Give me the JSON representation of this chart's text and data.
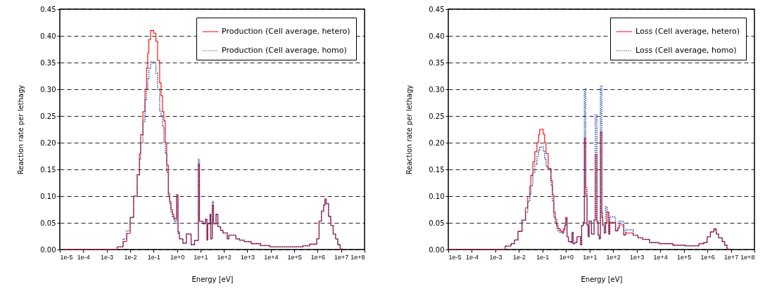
{
  "chart_data": [
    {
      "type": "step",
      "xlabel": "Energy [eV]",
      "ylabel": "Reaction rate per lethagy",
      "log": "x",
      "grid": "y",
      "legend": "top right",
      "xlim": [
        1e-05,
        100000000.0
      ],
      "ylim": [
        0,
        0.45
      ],
      "xticks": [
        {
          "value": 1e-05,
          "label": "1e-5"
        },
        {
          "value": 0.0001,
          "label": "1e-4"
        },
        {
          "value": 0.001,
          "label": "1e-3"
        },
        {
          "value": 0.01,
          "label": "1e-2"
        },
        {
          "value": 0.1,
          "label": "1e-1"
        },
        {
          "value": 1,
          "label": "1e+0"
        },
        {
          "value": 10,
          "label": "1e+1"
        },
        {
          "value": 100,
          "label": "1e+2"
        },
        {
          "value": 1000,
          "label": "1e+3"
        },
        {
          "value": 10000,
          "label": "1e+4"
        },
        {
          "value": 100000,
          "label": "1e+5"
        },
        {
          "value": 1000000,
          "label": "1e+6"
        },
        {
          "value": 10000000,
          "label": "1e+7"
        },
        {
          "value": 100000000,
          "label": "1e+8"
        }
      ],
      "yticks": [
        {
          "value": 0,
          "label": "0.00"
        },
        {
          "value": 0.05,
          "label": "0.05"
        },
        {
          "value": 0.1,
          "label": "0.10"
        },
        {
          "value": 0.15,
          "label": "0.15"
        },
        {
          "value": 0.2,
          "label": "0.20"
        },
        {
          "value": 0.25,
          "label": "0.25"
        },
        {
          "value": 0.3,
          "label": "0.30"
        },
        {
          "value": 0.35,
          "label": "0.35"
        },
        {
          "value": 0.4,
          "label": "0.40"
        },
        {
          "value": 0.45,
          "label": "0.45"
        }
      ],
      "x": [
        1e-05,
        0.0028,
        0.005,
        0.0071,
        0.01,
        0.014,
        0.02,
        0.025,
        0.028,
        0.035,
        0.043,
        0.05,
        0.056,
        0.063,
        0.074,
        0.1,
        0.126,
        0.148,
        0.182,
        0.209,
        0.24,
        0.275,
        0.316,
        0.363,
        0.427,
        0.479,
        0.55,
        0.631,
        0.724,
        0.832,
        0.955,
        1.1,
        1.26,
        1.78,
        2.5,
        4.0,
        5.6,
        8.1,
        9.1,
        12.9,
        16.2,
        19,
        20.4,
        25.7,
        27.5,
        32,
        36,
        46,
        55,
        72,
        91,
        138,
        162,
        324,
        457,
        724,
        1450,
        3630,
        9120,
        91200,
        230000,
        460000,
        910000,
        1150000,
        1450000,
        1800000,
        2040000,
        2300000,
        2900000,
        3600000,
        4600000,
        5800000,
        7200000,
        9100000,
        11500000
      ],
      "series": [
        {
          "name": "Production (Cell average, hetero)",
          "color": "#ff0000",
          "line_style": "solid",
          "values": [
            0,
            0.005,
            0.015,
            0.03,
            0.06,
            0.1,
            0.14,
            0.18,
            0.215,
            0.258,
            0.3,
            0.34,
            0.368,
            0.393,
            0.41,
            0.405,
            0.39,
            0.354,
            0.312,
            0.288,
            0.258,
            0.241,
            0.2,
            0.158,
            0.105,
            0.09,
            0.075,
            0.066,
            0.059,
            0.057,
            0.103,
            0.033,
            0.02,
            0.012,
            0.029,
            0.009,
            0.017,
            0.16,
            0.053,
            0.048,
            0.057,
            0.0175,
            0.048,
            0.066,
            0.02,
            0.083,
            0.048,
            0.066,
            0.043,
            0.036,
            0.031,
            0.02,
            0.027,
            0.02,
            0.0175,
            0.015,
            0.011,
            0.0075,
            0.005,
            0.005,
            0.007,
            0.01,
            0.02,
            0.053,
            0.072,
            0.083,
            0.095,
            0.086,
            0.062,
            0.045,
            0.029,
            0.02,
            0.009,
            0.001,
            0
          ]
        },
        {
          "name": "Production (Cell average, homo)",
          "color": "#1f3fa6",
          "line_style": "dotted",
          "values": [
            0,
            0.005,
            0.02,
            0.035,
            0.06,
            0.1,
            0.14,
            0.17,
            0.2,
            0.24,
            0.28,
            0.3,
            0.32,
            0.34,
            0.352,
            0.35,
            0.33,
            0.3,
            0.26,
            0.25,
            0.23,
            0.2,
            0.18,
            0.145,
            0.1,
            0.085,
            0.07,
            0.062,
            0.055,
            0.053,
            0.1,
            0.03,
            0.02,
            0.012,
            0.029,
            0.009,
            0.017,
            0.169,
            0.053,
            0.048,
            0.057,
            0.0175,
            0.048,
            0.066,
            0.02,
            0.09,
            0.048,
            0.066,
            0.043,
            0.036,
            0.031,
            0.02,
            0.027,
            0.02,
            0.0175,
            0.015,
            0.011,
            0.0075,
            0.005,
            0.005,
            0.007,
            0.01,
            0.02,
            0.053,
            0.072,
            0.083,
            0.093,
            0.086,
            0.062,
            0.045,
            0.029,
            0.02,
            0.009,
            0.001,
            0
          ]
        }
      ]
    },
    {
      "type": "step",
      "xlabel": "Energy [eV]",
      "ylabel": "Reaction rate per lethagy",
      "log": "x",
      "grid": "y",
      "legend": "top right",
      "xlim": [
        1e-05,
        100000000.0
      ],
      "ylim": [
        0,
        0.45
      ],
      "xticks": [
        {
          "value": 1e-05,
          "label": "1e-5"
        },
        {
          "value": 0.0001,
          "label": "1e-4"
        },
        {
          "value": 0.001,
          "label": "1e-3"
        },
        {
          "value": 0.01,
          "label": "1e-2"
        },
        {
          "value": 0.1,
          "label": "1e-1"
        },
        {
          "value": 1,
          "label": "1e+0"
        },
        {
          "value": 10,
          "label": "1e+1"
        },
        {
          "value": 100,
          "label": "1e+2"
        },
        {
          "value": 1000,
          "label": "1e+3"
        },
        {
          "value": 10000,
          "label": "1e+4"
        },
        {
          "value": 100000,
          "label": "1e+5"
        },
        {
          "value": 1000000,
          "label": "1e+6"
        },
        {
          "value": 10000000,
          "label": "1e+7"
        },
        {
          "value": 100000000,
          "label": "1e+8"
        }
      ],
      "yticks": [
        {
          "value": 0,
          "label": "0.00"
        },
        {
          "value": 0.05,
          "label": "0.05"
        },
        {
          "value": 0.1,
          "label": "0.10"
        },
        {
          "value": 0.15,
          "label": "0.15"
        },
        {
          "value": 0.2,
          "label": "0.20"
        },
        {
          "value": 0.25,
          "label": "0.25"
        },
        {
          "value": 0.3,
          "label": "0.30"
        },
        {
          "value": 0.35,
          "label": "0.35"
        },
        {
          "value": 0.4,
          "label": "0.40"
        },
        {
          "value": 0.45,
          "label": "0.45"
        }
      ],
      "x": [
        1e-05,
        0.0026,
        0.0046,
        0.0065,
        0.0091,
        0.0135,
        0.019,
        0.0235,
        0.029,
        0.032,
        0.039,
        0.047,
        0.058,
        0.068,
        0.076,
        0.107,
        0.123,
        0.141,
        0.174,
        0.229,
        0.263,
        0.302,
        0.347,
        0.398,
        0.457,
        0.562,
        0.66,
        0.794,
        0.891,
        0.977,
        1.1,
        1.26,
        1.66,
        1.78,
        2.0,
        2.34,
        2.9,
        4.1,
        4.6,
        5.5,
        6.0,
        6.8,
        7.8,
        8.7,
        9.5,
        12,
        15.5,
        17.4,
        20.4,
        22.9,
        25.7,
        28.8,
        33,
        36,
        42,
        48,
        55,
        65,
        72,
        126,
        158,
        178,
        282,
        339,
        708,
        1120,
        1780,
        3550,
        8900,
        35000,
        110000,
        440000,
        690000,
        980000,
        1350000,
        1900000,
        2400000,
        3000000,
        4300000,
        5400000,
        6800000,
        8500000
      ],
      "series": [
        {
          "name": "Loss (Cell average, hetero)",
          "color": "#ff0000",
          "line_style": "solid",
          "values": [
            0,
            0.0066,
            0.011,
            0.018,
            0.034,
            0.055,
            0.078,
            0.099,
            0.118,
            0.139,
            0.164,
            0.183,
            0.2,
            0.215,
            0.225,
            0.216,
            0.2,
            0.18,
            0.152,
            0.129,
            0.103,
            0.07,
            0.057,
            0.046,
            0.039,
            0.035,
            0.033,
            0.039,
            0.046,
            0.06,
            0.024,
            0.015,
            0.013,
            0.032,
            0.011,
            0.013,
            0.024,
            0.009,
            0.045,
            0.051,
            0.208,
            0.102,
            0.046,
            0.024,
            0.053,
            0.029,
            0.055,
            0.178,
            0.053,
            0.027,
            0.02,
            0.22,
            0.06,
            0.046,
            0.031,
            0.051,
            0.07,
            0.029,
            0.051,
            0.035,
            0.04,
            0.046,
            0.027,
            0.031,
            0.027,
            0.022,
            0.019,
            0.013,
            0.011,
            0.008,
            0.007,
            0.011,
            0.013,
            0.024,
            0.033,
            0.039,
            0.029,
            0.022,
            0.015,
            0.008,
            0.001,
            0
          ]
        },
        {
          "name": "Loss (Cell average, homo)",
          "color": "#1f3fa6",
          "line_style": "dotted",
          "values": [
            0,
            0.0066,
            0.011,
            0.018,
            0.034,
            0.055,
            0.07,
            0.09,
            0.105,
            0.12,
            0.145,
            0.16,
            0.175,
            0.185,
            0.192,
            0.185,
            0.17,
            0.155,
            0.15,
            0.12,
            0.09,
            0.06,
            0.05,
            0.04,
            0.035,
            0.032,
            0.03,
            0.036,
            0.044,
            0.058,
            0.024,
            0.015,
            0.013,
            0.032,
            0.011,
            0.013,
            0.024,
            0.009,
            0.045,
            0.051,
            0.301,
            0.117,
            0.046,
            0.024,
            0.053,
            0.029,
            0.055,
            0.252,
            0.053,
            0.027,
            0.02,
            0.306,
            0.07,
            0.046,
            0.031,
            0.08,
            0.07,
            0.029,
            0.061,
            0.035,
            0.04,
            0.053,
            0.027,
            0.037,
            0.027,
            0.022,
            0.019,
            0.013,
            0.011,
            0.008,
            0.007,
            0.011,
            0.013,
            0.024,
            0.033,
            0.037,
            0.029,
            0.022,
            0.015,
            0.008,
            0.001,
            0
          ]
        }
      ]
    }
  ]
}
